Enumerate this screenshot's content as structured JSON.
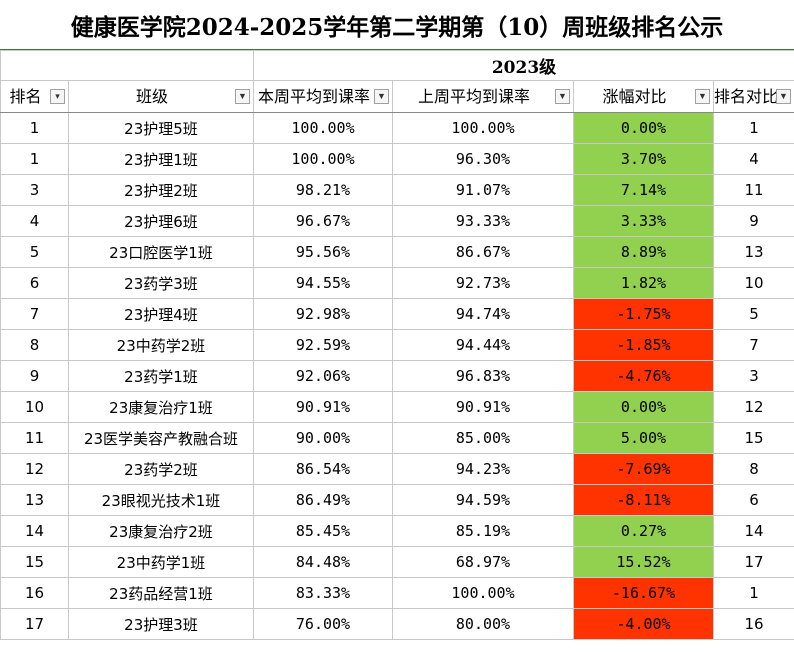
{
  "title": "健康医学院2024-2025学年第二学期第（10）周班级排名公示",
  "grade_label": "2023级",
  "headers": {
    "rank": "排名",
    "class": "班级",
    "this_week": "本周平均到课率",
    "last_week": "上周平均到课率",
    "change": "涨幅对比",
    "rank_compare": "排名对比"
  },
  "colors": {
    "increase": "#92d050",
    "decrease": "#ff3300"
  },
  "icons": {
    "rank_filter": "filter-sort-icon",
    "other_filter": "dropdown-arrow-icon"
  },
  "rows": [
    {
      "rank": "1",
      "class": "23护理5班",
      "this_week": "100.00%",
      "last_week": "100.00%",
      "change": "0.00%",
      "trend": "pos",
      "last_rank": "1"
    },
    {
      "rank": "1",
      "class": "23护理1班",
      "this_week": "100.00%",
      "last_week": "96.30%",
      "change": "3.70%",
      "trend": "pos",
      "last_rank": "4"
    },
    {
      "rank": "3",
      "class": "23护理2班",
      "this_week": "98.21%",
      "last_week": "91.07%",
      "change": "7.14%",
      "trend": "pos",
      "last_rank": "11"
    },
    {
      "rank": "4",
      "class": "23护理6班",
      "this_week": "96.67%",
      "last_week": "93.33%",
      "change": "3.33%",
      "trend": "pos",
      "last_rank": "9"
    },
    {
      "rank": "5",
      "class": "23口腔医学1班",
      "this_week": "95.56%",
      "last_week": "86.67%",
      "change": "8.89%",
      "trend": "pos",
      "last_rank": "13"
    },
    {
      "rank": "6",
      "class": "23药学3班",
      "this_week": "94.55%",
      "last_week": "92.73%",
      "change": "1.82%",
      "trend": "pos",
      "last_rank": "10"
    },
    {
      "rank": "7",
      "class": "23护理4班",
      "this_week": "92.98%",
      "last_week": "94.74%",
      "change": "-1.75%",
      "trend": "neg",
      "last_rank": "5"
    },
    {
      "rank": "8",
      "class": "23中药学2班",
      "this_week": "92.59%",
      "last_week": "94.44%",
      "change": "-1.85%",
      "trend": "neg",
      "last_rank": "7"
    },
    {
      "rank": "9",
      "class": "23药学1班",
      "this_week": "92.06%",
      "last_week": "96.83%",
      "change": "-4.76%",
      "trend": "neg",
      "last_rank": "3"
    },
    {
      "rank": "10",
      "class": "23康复治疗1班",
      "this_week": "90.91%",
      "last_week": "90.91%",
      "change": "0.00%",
      "trend": "pos",
      "last_rank": "12"
    },
    {
      "rank": "11",
      "class": "23医学美容产教融合班",
      "this_week": "90.00%",
      "last_week": "85.00%",
      "change": "5.00%",
      "trend": "pos",
      "last_rank": "15"
    },
    {
      "rank": "12",
      "class": "23药学2班",
      "this_week": "86.54%",
      "last_week": "94.23%",
      "change": "-7.69%",
      "trend": "neg",
      "last_rank": "8"
    },
    {
      "rank": "13",
      "class": "23眼视光技术1班",
      "this_week": "86.49%",
      "last_week": "94.59%",
      "change": "-8.11%",
      "trend": "neg",
      "last_rank": "6"
    },
    {
      "rank": "14",
      "class": "23康复治疗2班",
      "this_week": "85.45%",
      "last_week": "85.19%",
      "change": "0.27%",
      "trend": "pos",
      "last_rank": "14"
    },
    {
      "rank": "15",
      "class": "23中药学1班",
      "this_week": "84.48%",
      "last_week": "68.97%",
      "change": "15.52%",
      "trend": "pos",
      "last_rank": "17"
    },
    {
      "rank": "16",
      "class": "23药品经营1班",
      "this_week": "83.33%",
      "last_week": "100.00%",
      "change": "-16.67%",
      "trend": "neg",
      "last_rank": "1"
    },
    {
      "rank": "17",
      "class": "23护理3班",
      "this_week": "76.00%",
      "last_week": "80.00%",
      "change": "-4.00%",
      "trend": "neg",
      "last_rank": "16"
    }
  ]
}
